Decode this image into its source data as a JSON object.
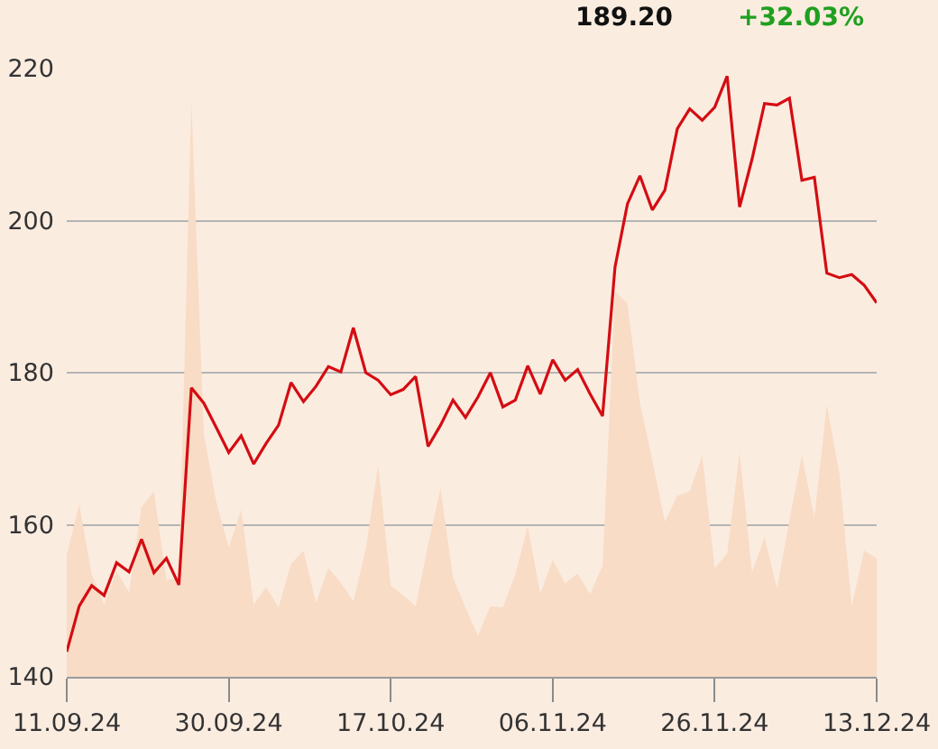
{
  "chart_data": {
    "type": "line",
    "annotations": [
      "189.20",
      "+32.03%"
    ],
    "categories": [
      "11.09.24",
      null,
      null,
      null,
      null,
      null,
      null,
      null,
      null,
      null,
      null,
      null,
      null,
      "30.09.24",
      null,
      null,
      null,
      null,
      null,
      null,
      null,
      null,
      null,
      null,
      null,
      null,
      "17.10.24",
      null,
      null,
      null,
      null,
      null,
      null,
      null,
      null,
      null,
      null,
      null,
      null,
      "06.11.24",
      null,
      null,
      null,
      null,
      null,
      null,
      null,
      null,
      null,
      null,
      null,
      null,
      "26.11.24",
      null,
      null,
      null,
      null,
      null,
      null,
      null,
      null,
      null,
      null,
      null,
      null,
      "13.12.24"
    ],
    "series": [
      {
        "type": "area",
        "color": "#f8dcc6",
        "values": [
          156.0,
          162.7,
          153.5,
          149.5,
          153.9,
          151.1,
          162.3,
          164.4,
          152.7,
          153.0,
          215.6,
          172.0,
          163.0,
          157.0,
          162.0,
          149.5,
          151.8,
          149.1,
          154.9,
          156.6,
          149.7,
          154.3,
          152.4,
          149.9,
          156.8,
          167.9,
          152.0,
          150.7,
          149.3,
          157.4,
          164.8,
          153.0,
          149.1,
          145.4,
          149.3,
          149.1,
          153.5,
          159.8,
          150.9,
          155.4,
          152.3,
          153.6,
          150.9,
          154.6,
          190.7,
          189.1,
          176.0,
          168.5,
          160.4,
          163.8,
          164.4,
          169.1,
          154.3,
          156.2,
          169.5,
          153.7,
          158.4,
          151.6,
          160.6,
          169.1,
          161.0,
          175.8,
          166.8,
          149.3,
          156.6,
          155.6
        ]
      },
      {
        "type": "line",
        "color": "#d40d12",
        "values": [
          143.3,
          149.3,
          152.0,
          150.7,
          155.0,
          153.8,
          158.1,
          153.7,
          155.6,
          152.1,
          178.0,
          176.0,
          172.8,
          169.5,
          171.7,
          168.0,
          170.7,
          173.1,
          178.7,
          176.2,
          178.2,
          180.8,
          180.1,
          185.9,
          180.0,
          179.0,
          177.1,
          177.8,
          179.5,
          170.3,
          173.1,
          176.4,
          174.1,
          176.8,
          180.0,
          175.5,
          176.4,
          180.9,
          177.2,
          181.7,
          179.0,
          180.4,
          177.2,
          174.3,
          193.9,
          202.2,
          205.9,
          201.4,
          204.0,
          212.1,
          214.7,
          213.2,
          214.9,
          219.0,
          201.8,
          208.1,
          215.4,
          215.2,
          216.1,
          205.3,
          205.7,
          193.1,
          192.5,
          192.9,
          191.5,
          189.2
        ]
      }
    ],
    "ylim": [
      140,
      220
    ],
    "yticks": [
      140,
      160,
      180,
      200,
      220
    ],
    "grid": "y",
    "line_style": "solid"
  }
}
